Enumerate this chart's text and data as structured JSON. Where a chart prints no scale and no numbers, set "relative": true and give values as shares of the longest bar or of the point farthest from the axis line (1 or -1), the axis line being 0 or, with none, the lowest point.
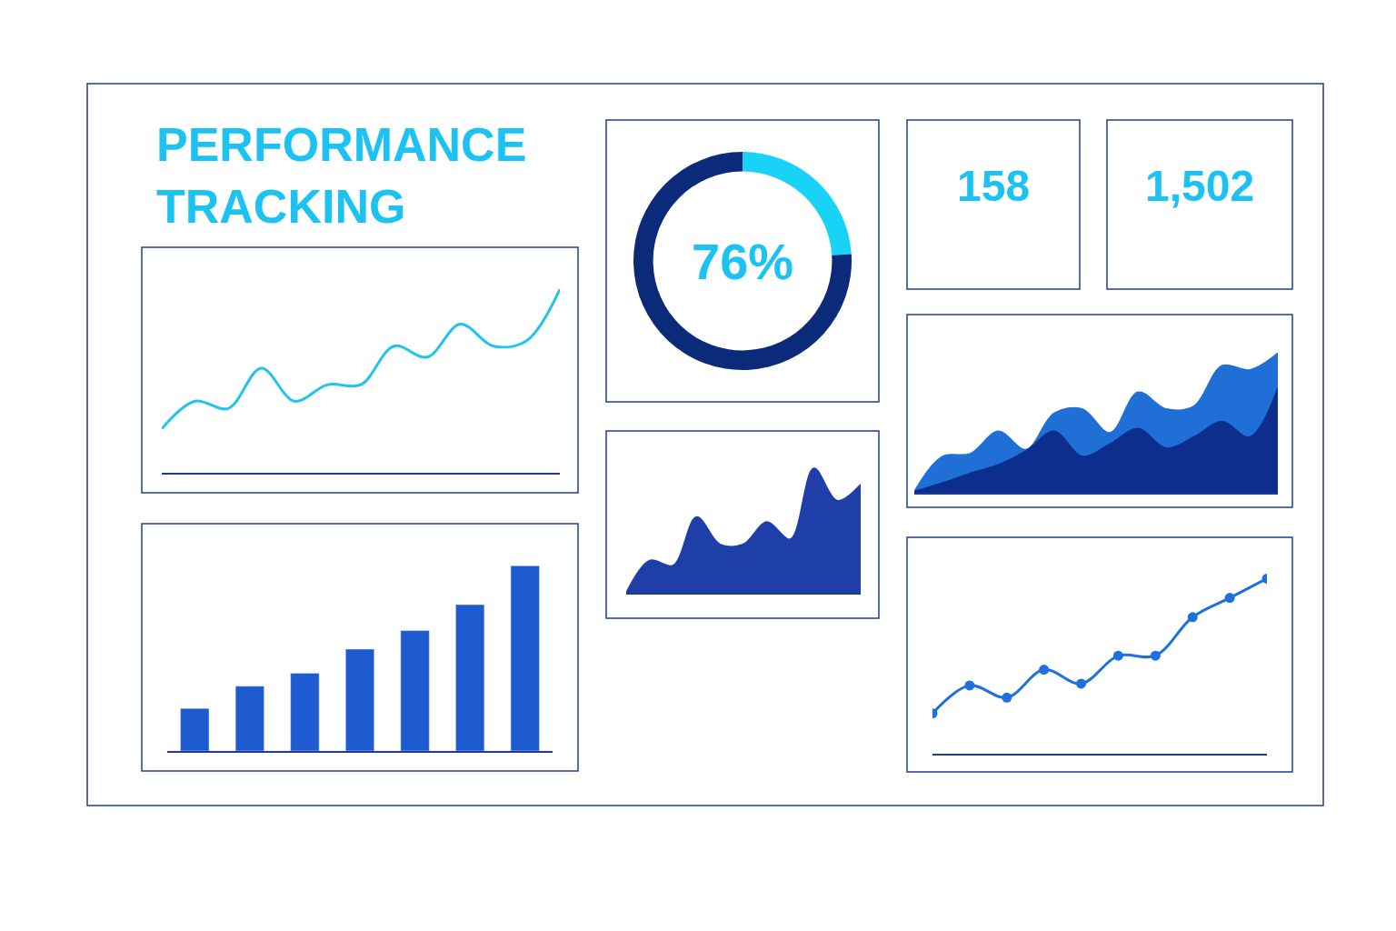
{
  "chart_data": [
    {
      "type": "other",
      "title": "PERFORMANCE TRACKING"
    },
    {
      "type": "line",
      "relative": true,
      "categories": [
        null,
        null,
        null,
        null,
        null,
        null,
        null,
        null,
        null,
        null,
        null,
        null,
        null
      ],
      "series": [
        {
          "color": "#22c3ee",
          "values": [
            0.24,
            0.39,
            0.35,
            0.57,
            0.39,
            0.48,
            0.48,
            0.69,
            0.63,
            0.81,
            0.69,
            0.72,
            1.0
          ]
        }
      ]
    },
    {
      "type": "donut",
      "categories": [
        null,
        null
      ],
      "values": [
        24,
        76
      ],
      "colors": [
        "#19d3f7",
        "#0b2a7a"
      ],
      "annotations": [
        "76%"
      ]
    },
    {
      "type": "other",
      "annotations": [
        "158"
      ]
    },
    {
      "type": "other",
      "annotations": [
        "1,502"
      ]
    },
    {
      "type": "area",
      "relative": true,
      "categories": [
        null,
        null,
        null,
        null,
        null,
        null,
        null,
        null,
        null,
        null,
        null,
        null,
        null,
        null
      ],
      "series": [
        {
          "color": "#1f6fd6",
          "values": [
            0.01,
            0.26,
            0.28,
            0.44,
            0.31,
            0.57,
            0.6,
            0.43,
            0.72,
            0.6,
            0.62,
            0.91,
            0.88,
            1.0
          ]
        },
        {
          "color": "#0d2e8c",
          "values": [
            0.01,
            0.07,
            0.14,
            0.2,
            0.3,
            0.44,
            0.26,
            0.35,
            0.46,
            0.32,
            0.4,
            0.51,
            0.4,
            0.75
          ]
        }
      ]
    },
    {
      "type": "area",
      "relative": true,
      "categories": [
        null,
        null,
        null,
        null,
        null,
        null,
        null,
        null,
        null,
        null,
        null
      ],
      "series": [
        {
          "color": "#1e3fa8",
          "values": [
            0,
            0.26,
            0.22,
            0.61,
            0.39,
            0.39,
            0.57,
            0.43,
            1.0,
            0.74,
            0.87
          ]
        }
      ]
    },
    {
      "type": "bar",
      "relative": true,
      "categories": [
        null,
        null,
        null,
        null,
        null,
        null,
        null
      ],
      "series": [
        {
          "color": "#1e5bd0",
          "values": [
            0.23,
            0.35,
            0.42,
            0.55,
            0.65,
            0.79,
            1.0
          ]
        }
      ]
    },
    {
      "type": "line",
      "relative": true,
      "marker": "circle",
      "categories": [
        null,
        null,
        null,
        null,
        null,
        null,
        null,
        null,
        null,
        null
      ],
      "series": [
        {
          "color": "#1e6fe0",
          "values": [
            0.23,
            0.39,
            0.32,
            0.48,
            0.4,
            0.56,
            0.56,
            0.78,
            0.89,
            1.0
          ]
        }
      ]
    }
  ]
}
